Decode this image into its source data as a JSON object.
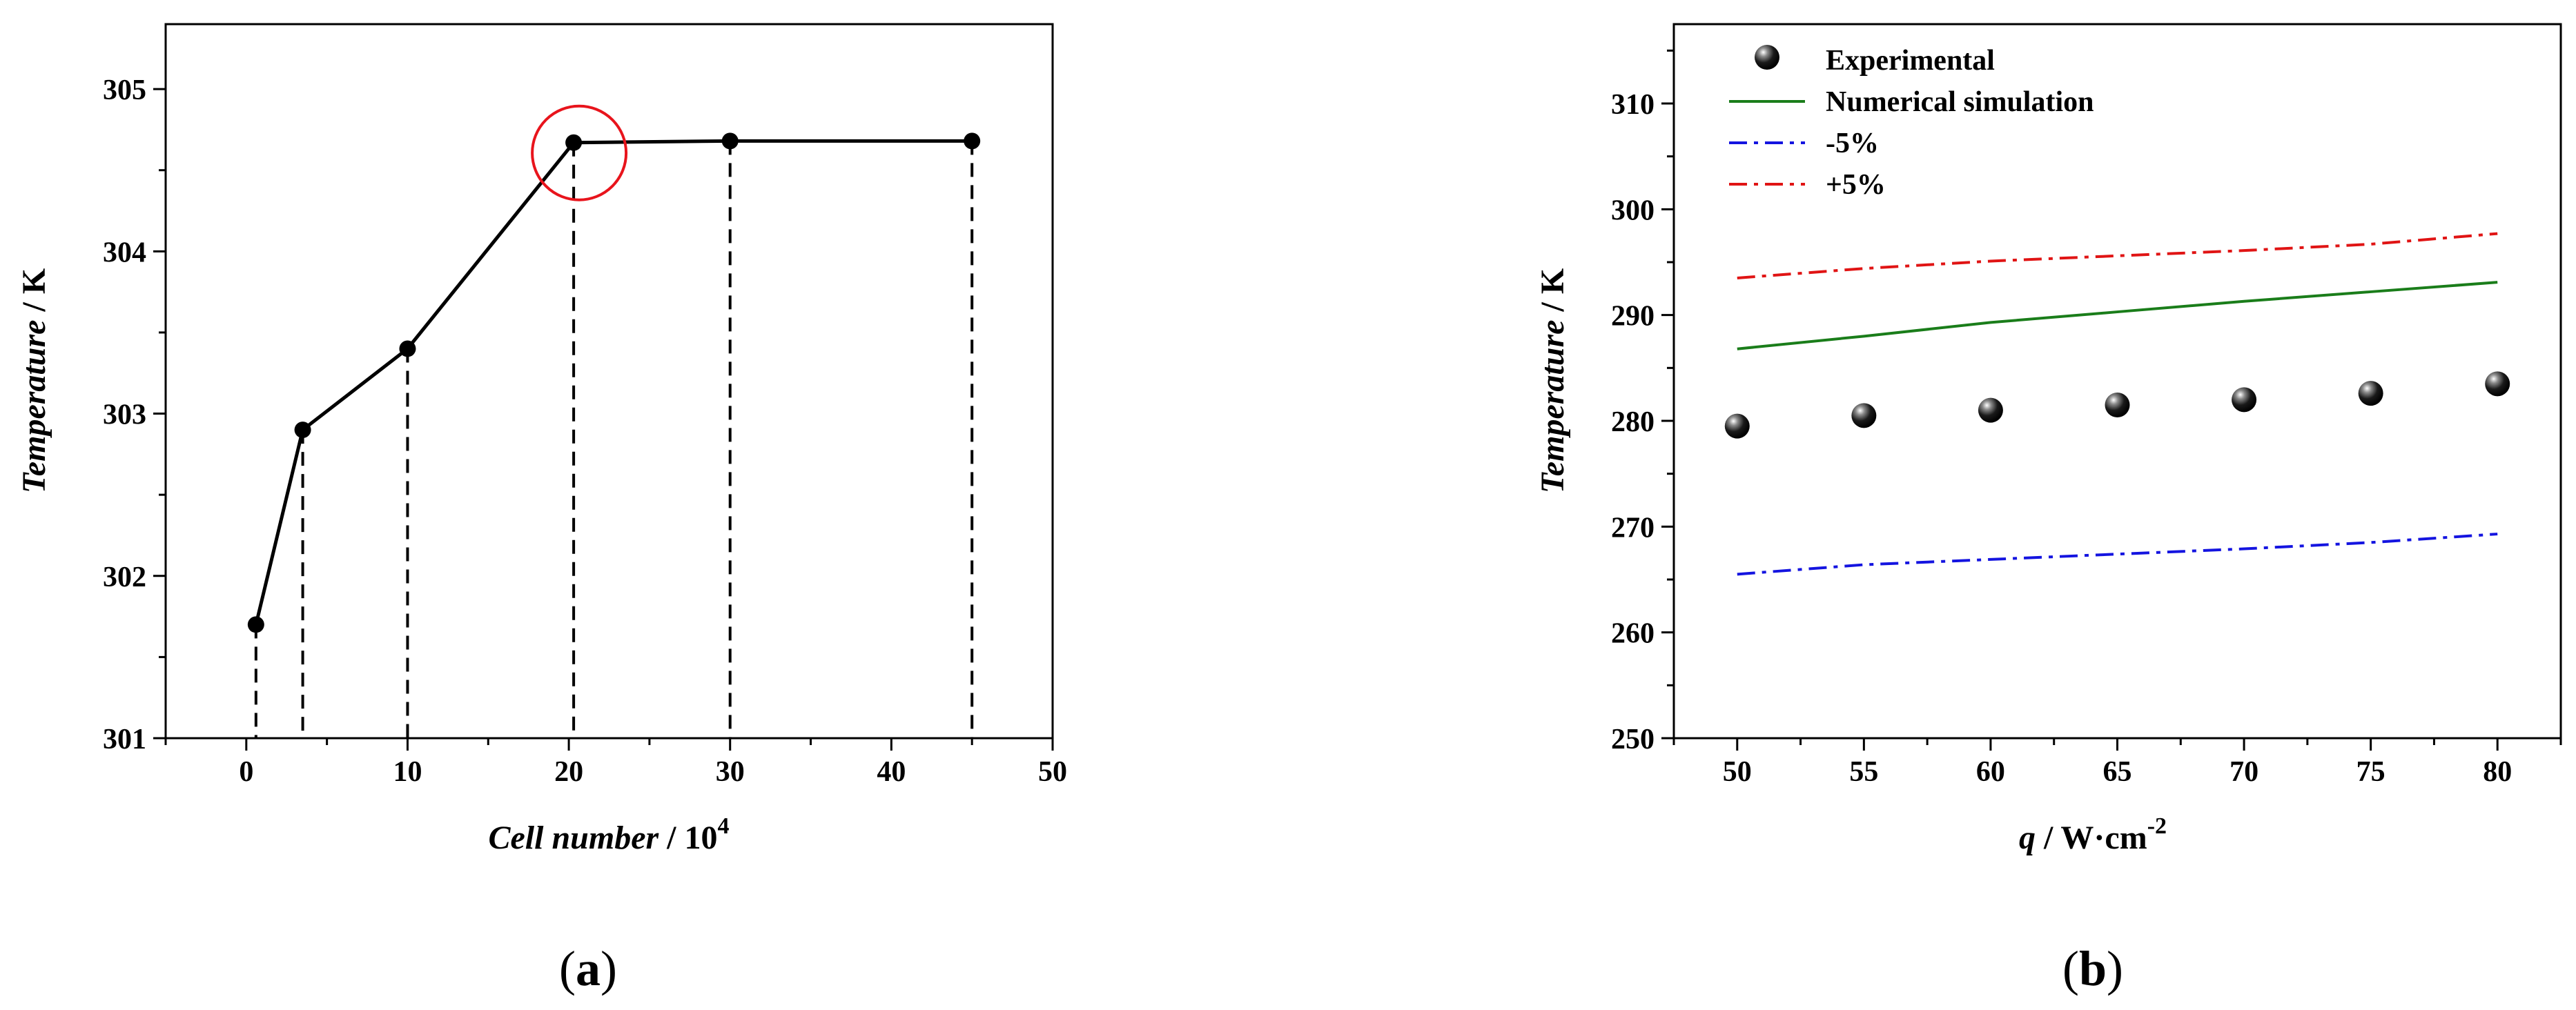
{
  "panel_a": {
    "label_open": "(",
    "label_letter": "a",
    "label_close": ")"
  },
  "panel_b": {
    "label_open": "(",
    "label_letter": "b",
    "label_close": ")"
  },
  "chart_data": [
    {
      "type": "line",
      "panel": "a",
      "xlabel_italic": "Cell number",
      "xlabel_rest": " / 10",
      "xlabel_sup": "4",
      "ylabel_italic": "Temperature",
      "ylabel_rest": " / K",
      "xlim": [
        -5,
        50
      ],
      "ylim": [
        301,
        305.4
      ],
      "xticks": [
        0,
        10,
        20,
        30,
        40,
        50
      ],
      "yticks": [
        301,
        302,
        303,
        304,
        305
      ],
      "x": [
        0.6,
        3.5,
        10,
        20.3,
        30,
        45
      ],
      "y": [
        301.7,
        302.9,
        303.4,
        304.67,
        304.68,
        304.68
      ],
      "dashed_droplines": true,
      "highlight_point_index": 3,
      "highlight_color": "#e8141c"
    },
    {
      "type": "scatter",
      "panel": "b",
      "xlabel_italic": "q",
      "xlabel_rest": " / W·cm",
      "xlabel_sup": "-2",
      "ylabel_italic": "Temperature",
      "ylabel_rest": " / K",
      "xlim": [
        47.5,
        82.5
      ],
      "ylim": [
        250,
        317.5
      ],
      "xticks": [
        50,
        55,
        60,
        65,
        70,
        75,
        80
      ],
      "yticks": [
        250,
        260,
        270,
        280,
        290,
        300,
        310
      ],
      "legend_position": "top-left",
      "series": [
        {
          "name": "Experimental",
          "style": "sphere-markers",
          "color": "#000000",
          "x": [
            50,
            55,
            60,
            65,
            70,
            75,
            80
          ],
          "y": [
            279.5,
            280.5,
            281,
            281.5,
            282,
            282.6,
            283.5
          ]
        },
        {
          "name": "Numerical simulation",
          "style": "solid",
          "color": "#1a7d1a",
          "x": [
            50,
            55,
            60,
            65,
            70,
            75,
            80
          ],
          "y": [
            286.8,
            288,
            289.3,
            290.3,
            291.3,
            292.2,
            293.1
          ]
        },
        {
          "name": "-5%",
          "style": "dash-dot",
          "color": "#1414e0",
          "x": [
            50,
            55,
            60,
            65,
            70,
            75,
            80
          ],
          "y": [
            265.5,
            266.4,
            266.9,
            267.4,
            267.9,
            268.5,
            269.3
          ]
        },
        {
          "name": "+5%",
          "style": "dash-dot",
          "color": "#e01414",
          "x": [
            50,
            55,
            60,
            65,
            70,
            75,
            80
          ],
          "y": [
            293.5,
            294.4,
            295.1,
            295.6,
            296.1,
            296.7,
            297.7
          ]
        }
      ]
    }
  ]
}
